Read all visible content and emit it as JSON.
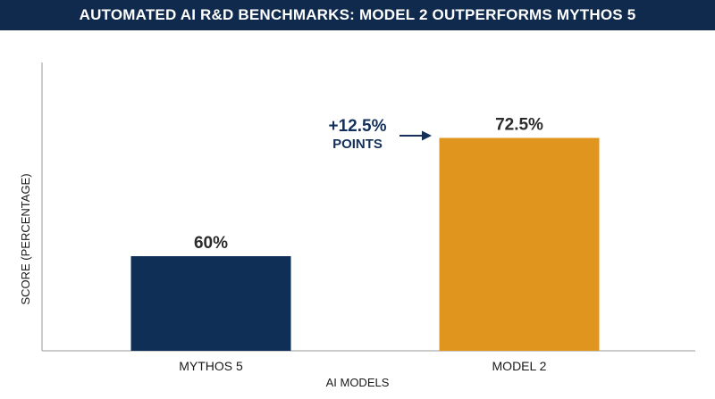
{
  "title": "AUTOMATED AI R&D BENCHMARKS: MODEL 2 OUTPERFORMS MYTHOS 5",
  "colors": {
    "title_bg": "#0f2a4d",
    "axis": "#9a9a9a",
    "annotation": "#14305a"
  },
  "chart_data": {
    "type": "bar",
    "title": "AUTOMATED AI R&D BENCHMARKS: MODEL 2 OUTPERFORMS MYTHOS 5",
    "xlabel": "AI MODELS",
    "ylabel": "SCORE (PERCENTAGE)",
    "ylim": [
      50,
      75
    ],
    "grid": false,
    "categories": [
      "MYTHOS 5",
      "MODEL 2"
    ],
    "values": [
      60,
      72.5
    ],
    "value_labels": [
      "60%",
      "72.5%"
    ],
    "bar_colors": [
      "#0f2f57",
      "#e0951f"
    ],
    "annotation": {
      "main": "+12.5%",
      "sub": "POINTS",
      "arrow": "right-arrow-icon"
    }
  }
}
